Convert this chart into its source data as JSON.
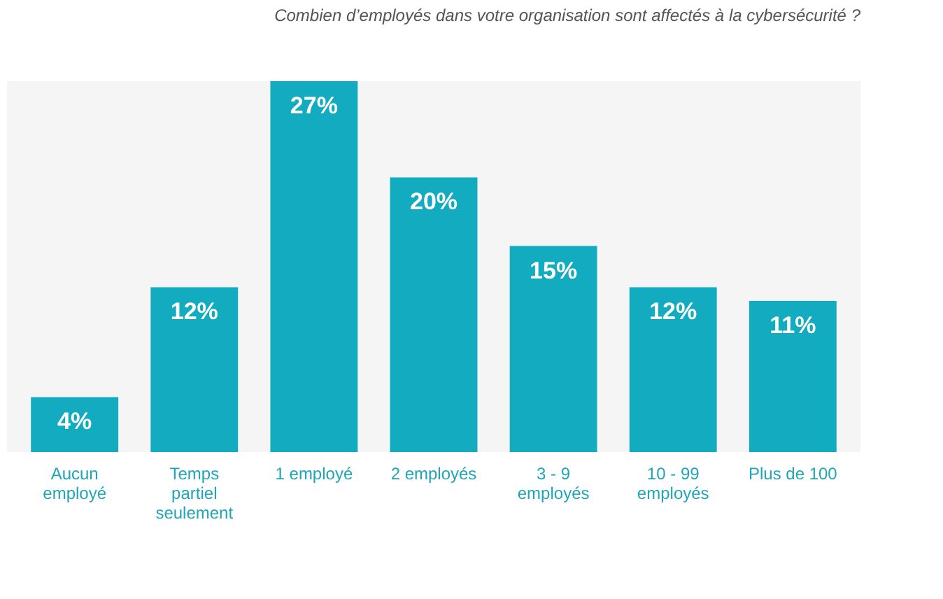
{
  "chart_data": {
    "type": "bar",
    "title": "Combien d’employés dans votre organisation sont affectés à la cybersécurité ?",
    "categories": [
      "Aucun employé",
      "Temps partiel seulement",
      "1 employé",
      "2 employés",
      "3 - 9 employés",
      "10 - 99 employés",
      "Plus de 100"
    ],
    "values": [
      4,
      12,
      27,
      20,
      15,
      12,
      11
    ],
    "value_labels": [
      "4%",
      "12%",
      "27%",
      "20%",
      "15%",
      "12%",
      "11%"
    ],
    "color": "#12abbf",
    "grid": false
  }
}
